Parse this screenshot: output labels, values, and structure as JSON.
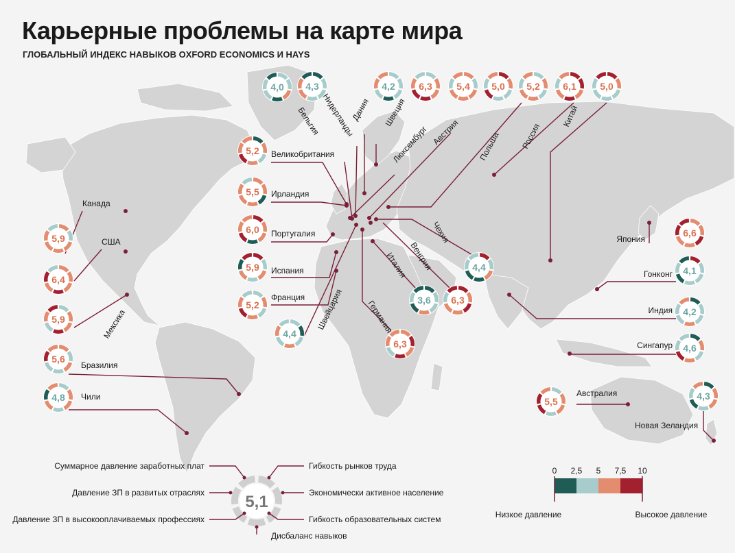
{
  "title": "Карьерные проблемы на карте мира",
  "subtitle": "ГЛОБАЛЬНЫЙ ИНДЕКС НАВЫКОВ OXFORD ECONOMICS И HAYS",
  "colors": {
    "bg": "#f4f4f4",
    "land": "#d4d4d4",
    "leader": "#7a1f37",
    "c1": "#1f5c56",
    "c2": "#a7cccb",
    "c3": "#e38c6f",
    "c4": "#a3202f"
  },
  "countries": [
    {
      "name": "Канада",
      "index": "5,9",
      "segments": [
        3,
        2,
        3,
        3,
        3,
        3,
        2
      ]
    },
    {
      "name": "США",
      "index": "6,4",
      "segments": [
        3,
        3,
        3,
        4,
        3,
        4,
        2
      ]
    },
    {
      "name": "Мексика",
      "index": "5,9",
      "segments": [
        2,
        3,
        3,
        4,
        2,
        3,
        4
      ]
    },
    {
      "name": "Бразилия",
      "index": "5,6",
      "segments": [
        3,
        2,
        3,
        2,
        2,
        4,
        3
      ]
    },
    {
      "name": "Чили",
      "index": "4,8",
      "segments": [
        2,
        3,
        3,
        2,
        3,
        1,
        3
      ]
    },
    {
      "name": "Великобритания",
      "index": "5,2",
      "segments": [
        1,
        3,
        2,
        3,
        4,
        3,
        3
      ]
    },
    {
      "name": "Ирландия",
      "index": "5,5",
      "segments": [
        3,
        3,
        1,
        3,
        3,
        3,
        2
      ]
    },
    {
      "name": "Португалия",
      "index": "6,0",
      "segments": [
        4,
        3,
        3,
        1,
        4,
        3,
        3
      ]
    },
    {
      "name": "Испания",
      "index": "5,9",
      "segments": [
        4,
        2,
        3,
        2,
        3,
        1,
        4
      ]
    },
    {
      "name": "Франция",
      "index": "5,2",
      "segments": [
        2,
        3,
        2,
        3,
        4,
        3,
        2
      ]
    },
    {
      "name": "Швейцария",
      "index": "4,4",
      "segments": [
        2,
        1,
        2,
        3,
        2,
        3,
        2
      ]
    },
    {
      "name": "Бельгия",
      "index": "4,0",
      "segments": [
        2,
        2,
        3,
        1,
        2,
        2,
        1
      ]
    },
    {
      "name": "Нидерланды",
      "index": "4,3",
      "segments": [
        1,
        2,
        2,
        2,
        3,
        3,
        1
      ]
    },
    {
      "name": "Дания",
      "index": "4,2",
      "segments": [
        2,
        2,
        2,
        1,
        2,
        3,
        3
      ]
    },
    {
      "name": "Швеция",
      "index": "6,3",
      "segments": [
        2,
        3,
        3,
        4,
        4,
        3,
        2
      ]
    },
    {
      "name": "Люксембург",
      "index": "5,4",
      "segments": [
        3,
        2,
        3,
        3,
        3,
        2,
        3
      ]
    },
    {
      "name": "Австрия",
      "index": "5,0",
      "segments": [
        4,
        3,
        2,
        2,
        4,
        2,
        3
      ]
    },
    {
      "name": "Польша",
      "index": "5,2",
      "segments": [
        2,
        3,
        2,
        3,
        3,
        2,
        3
      ]
    },
    {
      "name": "Россия",
      "index": "6,1",
      "segments": [
        4,
        4,
        3,
        4,
        3,
        2,
        3
      ]
    },
    {
      "name": "Китай",
      "index": "5,0",
      "segments": [
        4,
        3,
        2,
        2,
        2,
        2,
        4
      ]
    },
    {
      "name": "Чехия",
      "index": "4,4",
      "segments": [
        4,
        2,
        3,
        1,
        1,
        2,
        2
      ]
    },
    {
      "name": "Венгрия",
      "index": "6,3",
      "segments": [
        4,
        3,
        4,
        3,
        3,
        2,
        4
      ]
    },
    {
      "name": "Италия",
      "index": "3,6",
      "segments": [
        1,
        2,
        2,
        3,
        1,
        2,
        1
      ]
    },
    {
      "name": "Германия",
      "index": "6,3",
      "segments": [
        3,
        4,
        3,
        4,
        2,
        3,
        3
      ]
    },
    {
      "name": "Япония",
      "index": "6,6",
      "segments": [
        3,
        3,
        4,
        3,
        3,
        4,
        4
      ]
    },
    {
      "name": "Гонконг",
      "index": "4,1",
      "segments": [
        4,
        2,
        2,
        2,
        1,
        2,
        1
      ]
    },
    {
      "name": "Индия",
      "index": "4,2",
      "segments": [
        1,
        2,
        2,
        3,
        2,
        2,
        3
      ]
    },
    {
      "name": "Сингапур",
      "index": "4,6",
      "segments": [
        1,
        3,
        2,
        3,
        4,
        2,
        2
      ]
    },
    {
      "name": "Австралия",
      "index": "5,5",
      "segments": [
        2,
        3,
        3,
        2,
        4,
        4,
        3
      ]
    },
    {
      "name": "Новая Зеландия",
      "index": "4,3",
      "segments": [
        1,
        3,
        3,
        2,
        1,
        2,
        3
      ]
    }
  ],
  "legend": {
    "center_value": "5,1",
    "left_items": [
      "Суммарное давление заработных плат",
      "Давление ЗП в развитых отраслях",
      "Давление ЗП в высокооплачиваемых профессиях"
    ],
    "right_items": [
      "Гибкость рынков труда",
      "Экономически активное население",
      "Гибкость образовательных систем"
    ],
    "bottom_item": "Дисбаланс навыков"
  },
  "scale": {
    "ticks": [
      "0",
      "2,5",
      "5",
      "7,5",
      "10"
    ],
    "low_label": "Низкое давление",
    "high_label": "Высокое давление"
  }
}
